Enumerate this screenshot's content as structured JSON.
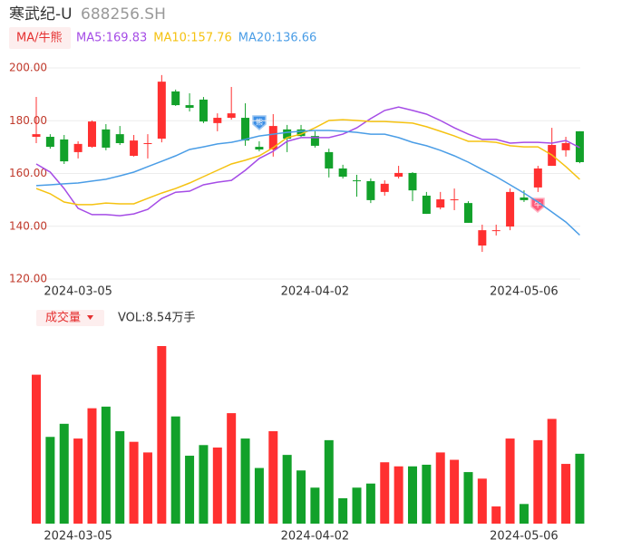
{
  "header": {
    "title": "寒武纪-U",
    "code": "688256.SH"
  },
  "chart_data": [
    {
      "type": "candlestick",
      "legend_button": "MA/牛熊",
      "bull_icon": "牛",
      "bear_icon": "熊",
      "categories": [
        null,
        null,
        null,
        "2024-03-05",
        null,
        null,
        null,
        null,
        null,
        null,
        null,
        null,
        null,
        null,
        null,
        null,
        null,
        null,
        null,
        null,
        "2024-04-02",
        null,
        null,
        null,
        null,
        null,
        null,
        null,
        null,
        null,
        null,
        null,
        null,
        null,
        null,
        "2024-05-06",
        null,
        null,
        null,
        null
      ],
      "open": [
        173.9,
        173.9,
        172.9,
        168.1,
        170.1,
        176.7,
        174.9,
        166.7,
        171.2,
        173.2,
        191.1,
        185.9,
        188.0,
        179.1,
        181.1,
        181.1,
        170.1,
        169.1,
        176.7,
        176.7,
        174.2,
        168.1,
        161.9,
        157.4,
        157.1,
        153.0,
        158.8,
        160.2,
        151.6,
        147.1,
        150.0,
        148.8,
        132.7,
        138.3,
        139.9,
        150.9,
        154.7,
        162.9,
        168.8,
        176.0
      ],
      "high": [
        189.0,
        174.9,
        174.6,
        172.2,
        180.1,
        178.7,
        178.0,
        174.6,
        174.9,
        197.3,
        191.8,
        190.4,
        189.0,
        182.8,
        192.8,
        186.6,
        172.2,
        182.5,
        178.4,
        178.4,
        176.0,
        169.4,
        163.3,
        159.5,
        158.1,
        157.4,
        162.9,
        160.5,
        153.0,
        153.0,
        154.3,
        149.5,
        140.6,
        140.6,
        154.3,
        153.6,
        162.9,
        177.3,
        173.9,
        176.0
      ],
      "low": [
        171.5,
        169.4,
        163.6,
        165.7,
        169.8,
        168.8,
        170.8,
        166.4,
        165.7,
        171.8,
        185.6,
        183.5,
        179.1,
        176.0,
        180.4,
        170.5,
        168.4,
        166.4,
        168.1,
        173.9,
        169.8,
        158.5,
        158.1,
        151.2,
        148.8,
        151.6,
        158.1,
        149.5,
        144.7,
        146.4,
        146.1,
        141.3,
        130.3,
        136.5,
        138.5,
        149.2,
        153.0,
        162.9,
        166.4,
        163.9
      ],
      "close": [
        174.9,
        170.1,
        164.6,
        171.2,
        179.7,
        169.8,
        171.5,
        172.5,
        171.5,
        194.8,
        185.9,
        184.9,
        179.7,
        181.1,
        182.8,
        172.5,
        169.1,
        178.0,
        173.2,
        174.2,
        170.5,
        161.9,
        158.8,
        157.1,
        149.9,
        156.1,
        160.2,
        153.6,
        144.7,
        150.2,
        150.2,
        141.3,
        138.5,
        138.5,
        153.0,
        149.9,
        161.9,
        170.8,
        171.5,
        164.3
      ],
      "up_color": "#ff3030",
      "down_color": "#12a12a",
      "series": [
        {
          "name": "MA5:169.83",
          "color": "#a54ce6",
          "values": [
            163.6,
            160.5,
            154.3,
            146.8,
            144.4,
            144.4,
            144.0,
            144.7,
            146.4,
            150.5,
            152.9,
            153.3,
            155.7,
            156.7,
            157.4,
            161.2,
            165.7,
            168.4,
            172.2,
            173.6,
            173.6,
            173.6,
            174.9,
            177.3,
            180.8,
            183.9,
            185.2,
            183.9,
            182.5,
            180.1,
            177.3,
            174.9,
            172.9,
            172.9,
            171.5,
            171.8,
            171.8,
            171.5,
            172.5,
            169.83
          ]
        },
        {
          "name": "MA10:157.76",
          "color": "#f5c211",
          "values": [
            154.3,
            152.3,
            149.2,
            148.2,
            148.2,
            148.8,
            148.5,
            148.5,
            150.6,
            152.6,
            154.3,
            156.4,
            158.8,
            161.2,
            163.6,
            165.0,
            166.7,
            169.8,
            173.6,
            174.9,
            177.3,
            180.1,
            180.4,
            180.1,
            179.7,
            179.7,
            179.4,
            179.1,
            177.7,
            176.0,
            174.2,
            172.2,
            172.2,
            171.8,
            170.5,
            170.1,
            170.1,
            167.0,
            162.6,
            157.76
          ]
        },
        {
          "name": "MA20:136.66",
          "color": "#4a9de6",
          "values": [
            155.4,
            155.7,
            156.1,
            156.4,
            157.1,
            157.8,
            159.1,
            160.5,
            162.6,
            164.6,
            166.7,
            169.1,
            170.1,
            171.2,
            171.8,
            172.9,
            174.2,
            174.9,
            175.6,
            176.0,
            176.3,
            176.3,
            176.0,
            175.6,
            174.9,
            174.9,
            173.6,
            171.8,
            170.5,
            168.8,
            166.7,
            164.3,
            161.5,
            158.8,
            155.7,
            152.6,
            149.2,
            145.4,
            141.6,
            136.66
          ]
        }
      ],
      "ylim": [
        120,
        200
      ],
      "yticks": [
        {
          "value": 120,
          "label": "120.00"
        },
        {
          "value": 140,
          "label": "140.00"
        },
        {
          "value": 160,
          "label": "160.00"
        },
        {
          "value": 180,
          "label": "180.00"
        },
        {
          "value": 200,
          "label": "200.00"
        }
      ],
      "grid": true
    },
    {
      "type": "bar",
      "title": "成交量",
      "subtitle": "VOL:8.54万手",
      "categories": [
        null,
        null,
        null,
        "2024-03-05",
        null,
        null,
        null,
        null,
        null,
        null,
        null,
        null,
        null,
        null,
        null,
        null,
        null,
        null,
        null,
        null,
        "2024-04-02",
        null,
        null,
        null,
        null,
        null,
        null,
        null,
        null,
        null,
        null,
        null,
        null,
        null,
        null,
        "2024-05-06",
        null,
        null,
        null,
        null
      ],
      "values": [
        18.2,
        10.6,
        12.2,
        10.4,
        14.1,
        14.3,
        11.3,
        10.0,
        8.7,
        21.7,
        13.1,
        8.3,
        9.6,
        9.3,
        13.5,
        10.4,
        6.8,
        11.3,
        8.4,
        6.5,
        4.4,
        10.2,
        3.1,
        4.4,
        4.9,
        7.5,
        7.0,
        7.0,
        7.2,
        8.7,
        7.8,
        6.3,
        5.5,
        2.1,
        10.4,
        2.4,
        10.2,
        12.8,
        7.3,
        8.54
      ]
    }
  ]
}
